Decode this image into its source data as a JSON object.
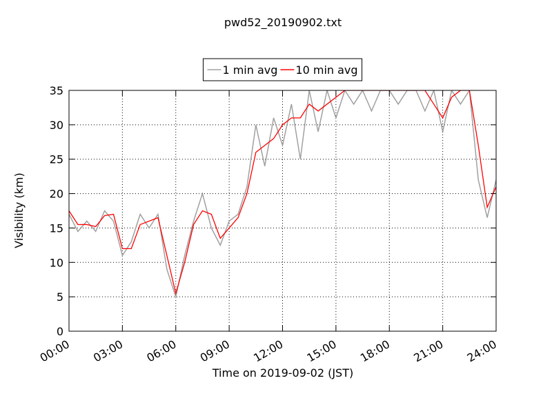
{
  "chart_data": {
    "type": "line",
    "title": "pwd52_20190902.txt",
    "xlabel": "Time on 2019-09-02 (JST)",
    "ylabel": "Visibility (km)",
    "x": [
      0,
      0.5,
      1,
      1.5,
      2,
      2.5,
      3,
      3.5,
      4,
      4.5,
      5,
      5.5,
      6,
      6.5,
      7,
      7.5,
      8,
      8.5,
      9,
      9.5,
      10,
      10.5,
      11,
      11.5,
      12,
      12.5,
      13,
      13.5,
      14,
      14.5,
      15,
      15.5,
      16,
      16.5,
      17,
      17.5,
      18,
      18.5,
      19,
      19.5,
      20,
      20.5,
      21,
      21.5,
      22,
      22.5,
      23,
      23.5,
      24
    ],
    "series": [
      {
        "name": "1 min avg",
        "color": "#a0a0a0",
        "values": [
          17,
          14.5,
          16,
          14.5,
          17.5,
          16,
          11,
          13,
          17,
          15,
          17,
          9,
          5,
          11,
          16,
          20,
          15,
          12.5,
          16,
          17,
          21,
          30,
          24,
          31,
          27,
          33,
          25,
          35,
          29,
          35,
          31,
          35,
          33,
          35,
          32,
          35,
          35,
          33,
          35,
          35,
          32,
          35,
          29,
          35,
          33,
          35,
          22,
          16.5,
          22
        ]
      },
      {
        "name": "10 min avg",
        "color": "#ff0000",
        "values": [
          17.5,
          15.5,
          15.5,
          15.2,
          16.8,
          17,
          12,
          12,
          15.5,
          16,
          16.5,
          11,
          5.5,
          10,
          15.5,
          17.5,
          17,
          13.5,
          15,
          16.5,
          20,
          26,
          27,
          28,
          30,
          31,
          31,
          33,
          32,
          33,
          34,
          35,
          35,
          35,
          35,
          35,
          35,
          35,
          35,
          35,
          35,
          33,
          31,
          34,
          35,
          35,
          27,
          18,
          21
        ]
      }
    ],
    "xlim": [
      0,
      24
    ],
    "xticks": [
      {
        "value": 0,
        "label": "00:00"
      },
      {
        "value": 3,
        "label": "03:00"
      },
      {
        "value": 6,
        "label": "06:00"
      },
      {
        "value": 9,
        "label": "09:00"
      },
      {
        "value": 12,
        "label": "12:00"
      },
      {
        "value": 15,
        "label": "15:00"
      },
      {
        "value": 18,
        "label": "18:00"
      },
      {
        "value": 21,
        "label": "21:00"
      },
      {
        "value": 24,
        "label": "24:00"
      }
    ],
    "ylim": [
      0,
      35
    ],
    "yticks": [
      0,
      5,
      10,
      15,
      20,
      25,
      30,
      35
    ],
    "grid": true,
    "legend": "top"
  }
}
